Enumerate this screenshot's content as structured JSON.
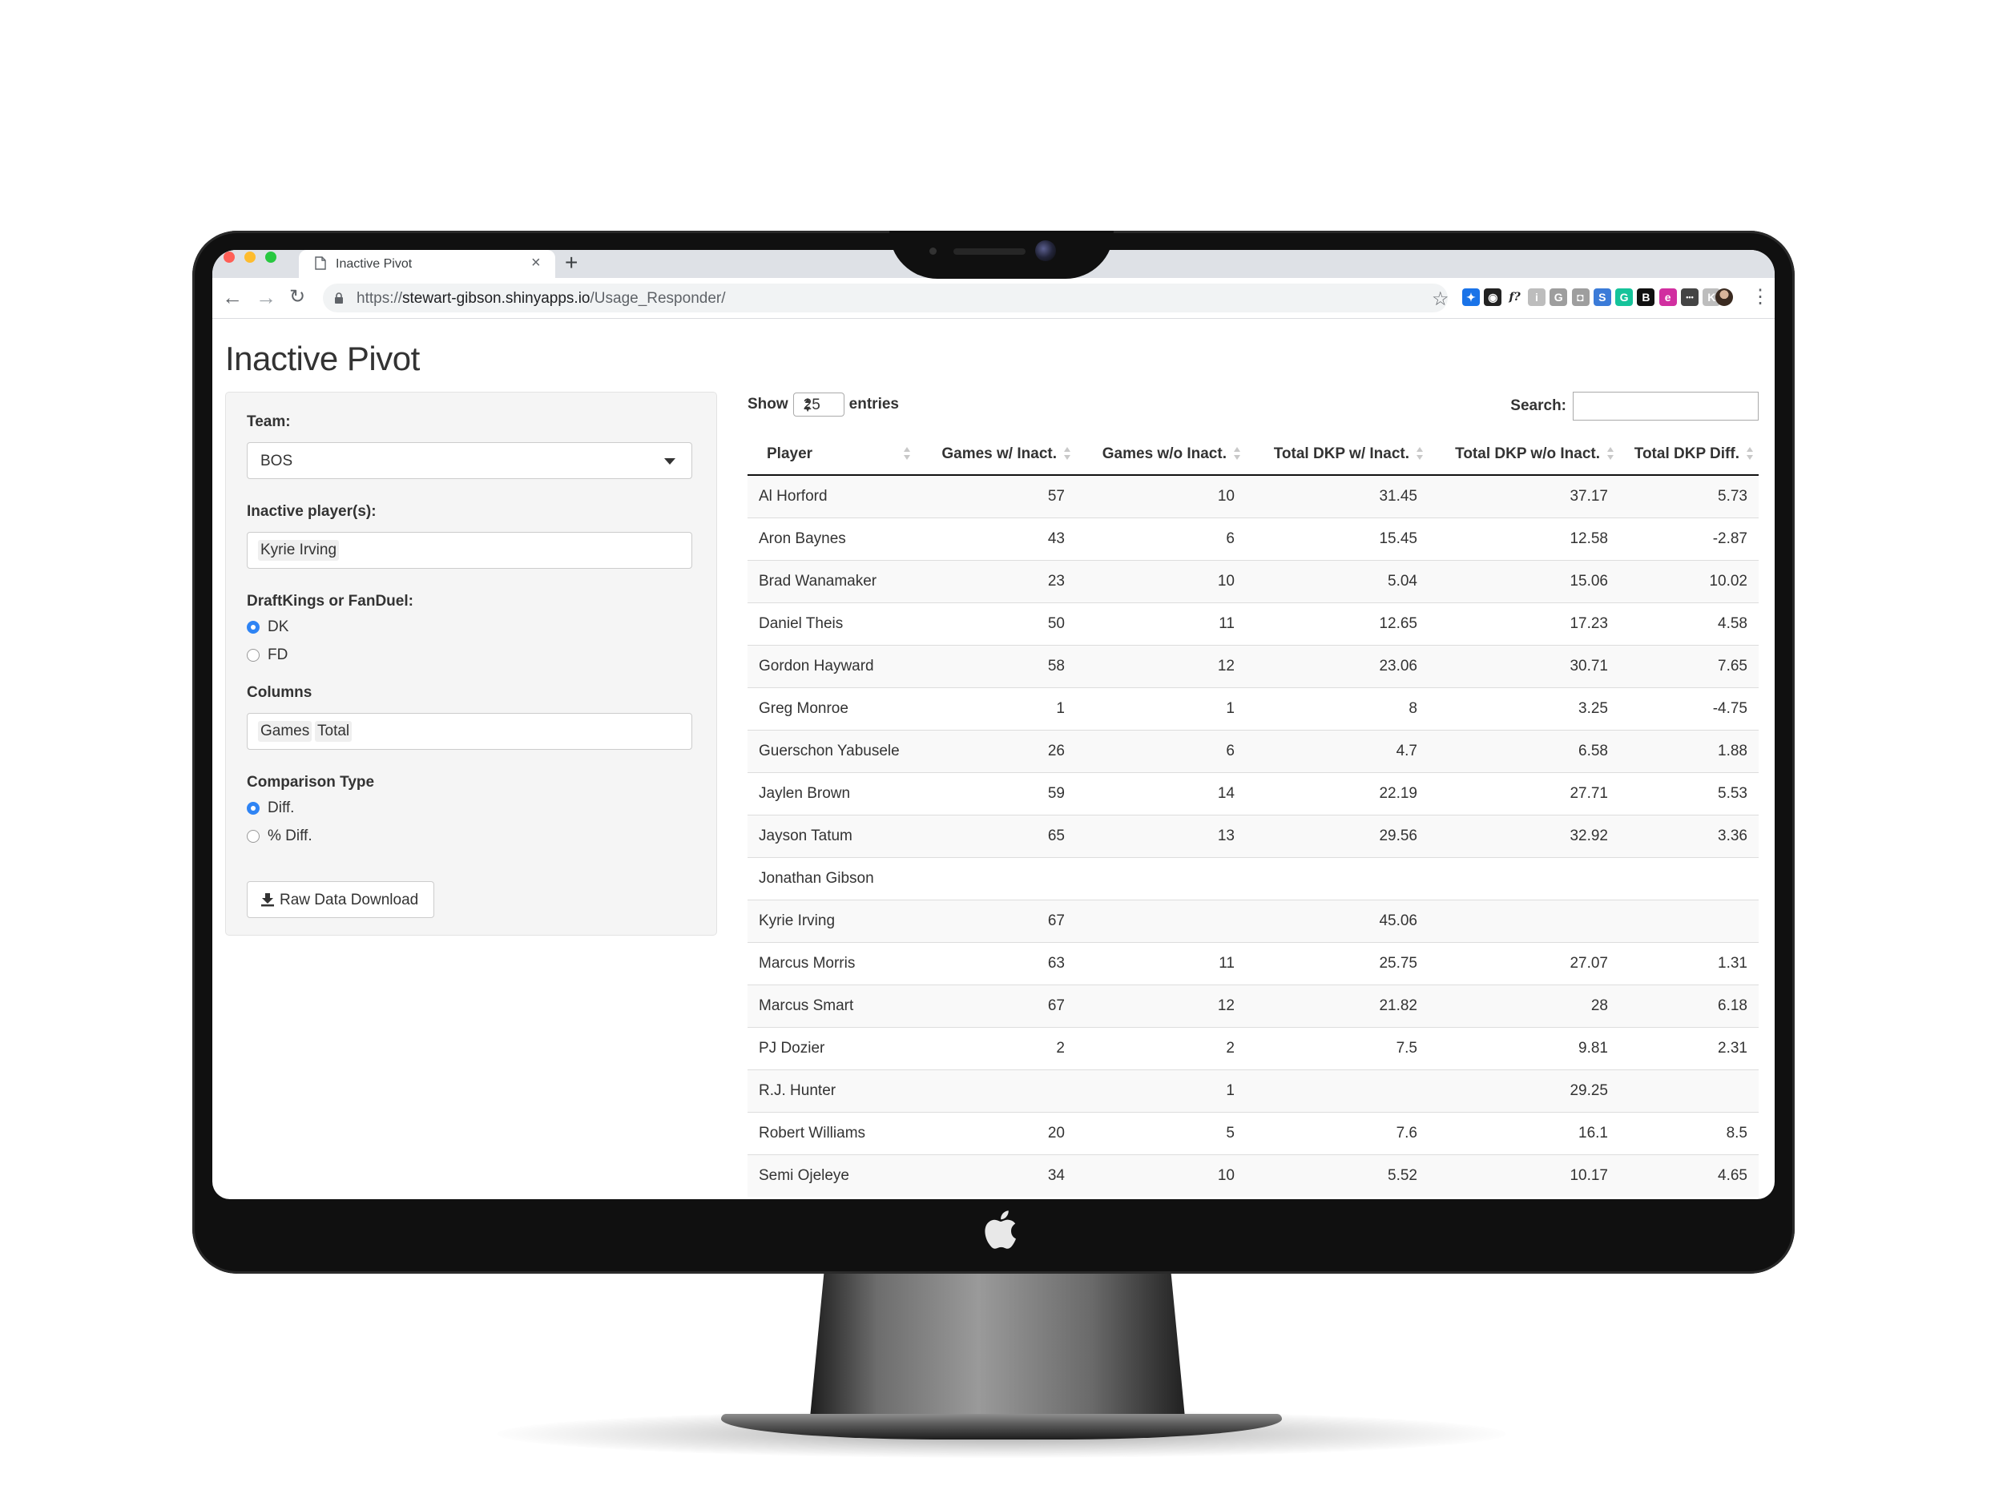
{
  "browser": {
    "tab_title": "Inactive Pivot",
    "url_scheme": "https://",
    "url_host": "stewart-gibson.shinyapps.io",
    "url_path": "/Usage_Responder/",
    "extensions": [
      {
        "icon": "dropbox-icon",
        "color": "#1a73e8",
        "glyph": "✦"
      },
      {
        "icon": "color-wheel-icon",
        "color": "#222222",
        "glyph": "◉"
      },
      {
        "icon": "formula-icon",
        "color": "#ffffff",
        "glyph": "f?"
      },
      {
        "icon": "info-icon",
        "color": "#bdbdbd",
        "glyph": "i"
      },
      {
        "icon": "g-extension-icon",
        "color": "#9e9e9e",
        "glyph": "G"
      },
      {
        "icon": "camera-icon",
        "color": "#9e9e9e",
        "glyph": "◘"
      },
      {
        "icon": "screenshot-icon",
        "color": "#3b7bd8",
        "glyph": "S"
      },
      {
        "icon": "grammarly-icon",
        "color": "#15c39a",
        "glyph": "G"
      },
      {
        "icon": "bold-b-icon",
        "color": "#111111",
        "glyph": "B"
      },
      {
        "icon": "pink-e-icon",
        "color": "#d12fa0",
        "glyph": "e"
      },
      {
        "icon": "dots-box-icon",
        "color": "#444444",
        "glyph": "•••"
      },
      {
        "icon": "k-extension-icon",
        "color": "#bdbdbd",
        "glyph": "K"
      }
    ]
  },
  "app": {
    "title": "Inactive Pivot"
  },
  "sidebar": {
    "team_label": "Team:",
    "team_value": "BOS",
    "inactive_label": "Inactive player(s):",
    "inactive_value": "Kyrie Irving",
    "site_label": "DraftKings or FanDuel:",
    "site_options": [
      "DK",
      "FD"
    ],
    "site_selected": "DK",
    "columns_label": "Columns",
    "columns_values": [
      "Games",
      "Total"
    ],
    "comparison_label": "Comparison Type",
    "comparison_options": [
      "Diff.",
      "% Diff."
    ],
    "comparison_selected": "Diff.",
    "download_label": "Raw Data Download"
  },
  "table": {
    "show_label": "Show",
    "page_length": "25",
    "entries_label": "entries",
    "search_label": "Search:",
    "columns": [
      "Player",
      "Games w/ Inact.",
      "Games w/o Inact.",
      "Total DKP w/ Inact.",
      "Total DKP w/o Inact.",
      "Total DKP Diff."
    ],
    "rows": [
      [
        "Al Horford",
        "57",
        "10",
        "31.45",
        "37.17",
        "5.73"
      ],
      [
        "Aron Baynes",
        "43",
        "6",
        "15.45",
        "12.58",
        "-2.87"
      ],
      [
        "Brad Wanamaker",
        "23",
        "10",
        "5.04",
        "15.06",
        "10.02"
      ],
      [
        "Daniel Theis",
        "50",
        "11",
        "12.65",
        "17.23",
        "4.58"
      ],
      [
        "Gordon Hayward",
        "58",
        "12",
        "23.06",
        "30.71",
        "7.65"
      ],
      [
        "Greg Monroe",
        "1",
        "1",
        "8",
        "3.25",
        "-4.75"
      ],
      [
        "Guerschon Yabusele",
        "26",
        "6",
        "4.7",
        "6.58",
        "1.88"
      ],
      [
        "Jaylen Brown",
        "59",
        "14",
        "22.19",
        "27.71",
        "5.53"
      ],
      [
        "Jayson Tatum",
        "65",
        "13",
        "29.56",
        "32.92",
        "3.36"
      ],
      [
        "Jonathan Gibson",
        "",
        "",
        "",
        "",
        ""
      ],
      [
        "Kyrie Irving",
        "67",
        "",
        "45.06",
        "",
        ""
      ],
      [
        "Marcus Morris",
        "63",
        "11",
        "25.75",
        "27.07",
        "1.31"
      ],
      [
        "Marcus Smart",
        "67",
        "12",
        "21.82",
        "28",
        "6.18"
      ],
      [
        "PJ Dozier",
        "2",
        "2",
        "7.5",
        "9.81",
        "2.31"
      ],
      [
        "R.J. Hunter",
        "",
        "1",
        "",
        "29.25",
        ""
      ],
      [
        "Robert Williams",
        "20",
        "5",
        "7.6",
        "16.1",
        "8.5"
      ],
      [
        "Semi Ojeleye",
        "34",
        "10",
        "5.52",
        "10.17",
        "4.65"
      ]
    ]
  }
}
